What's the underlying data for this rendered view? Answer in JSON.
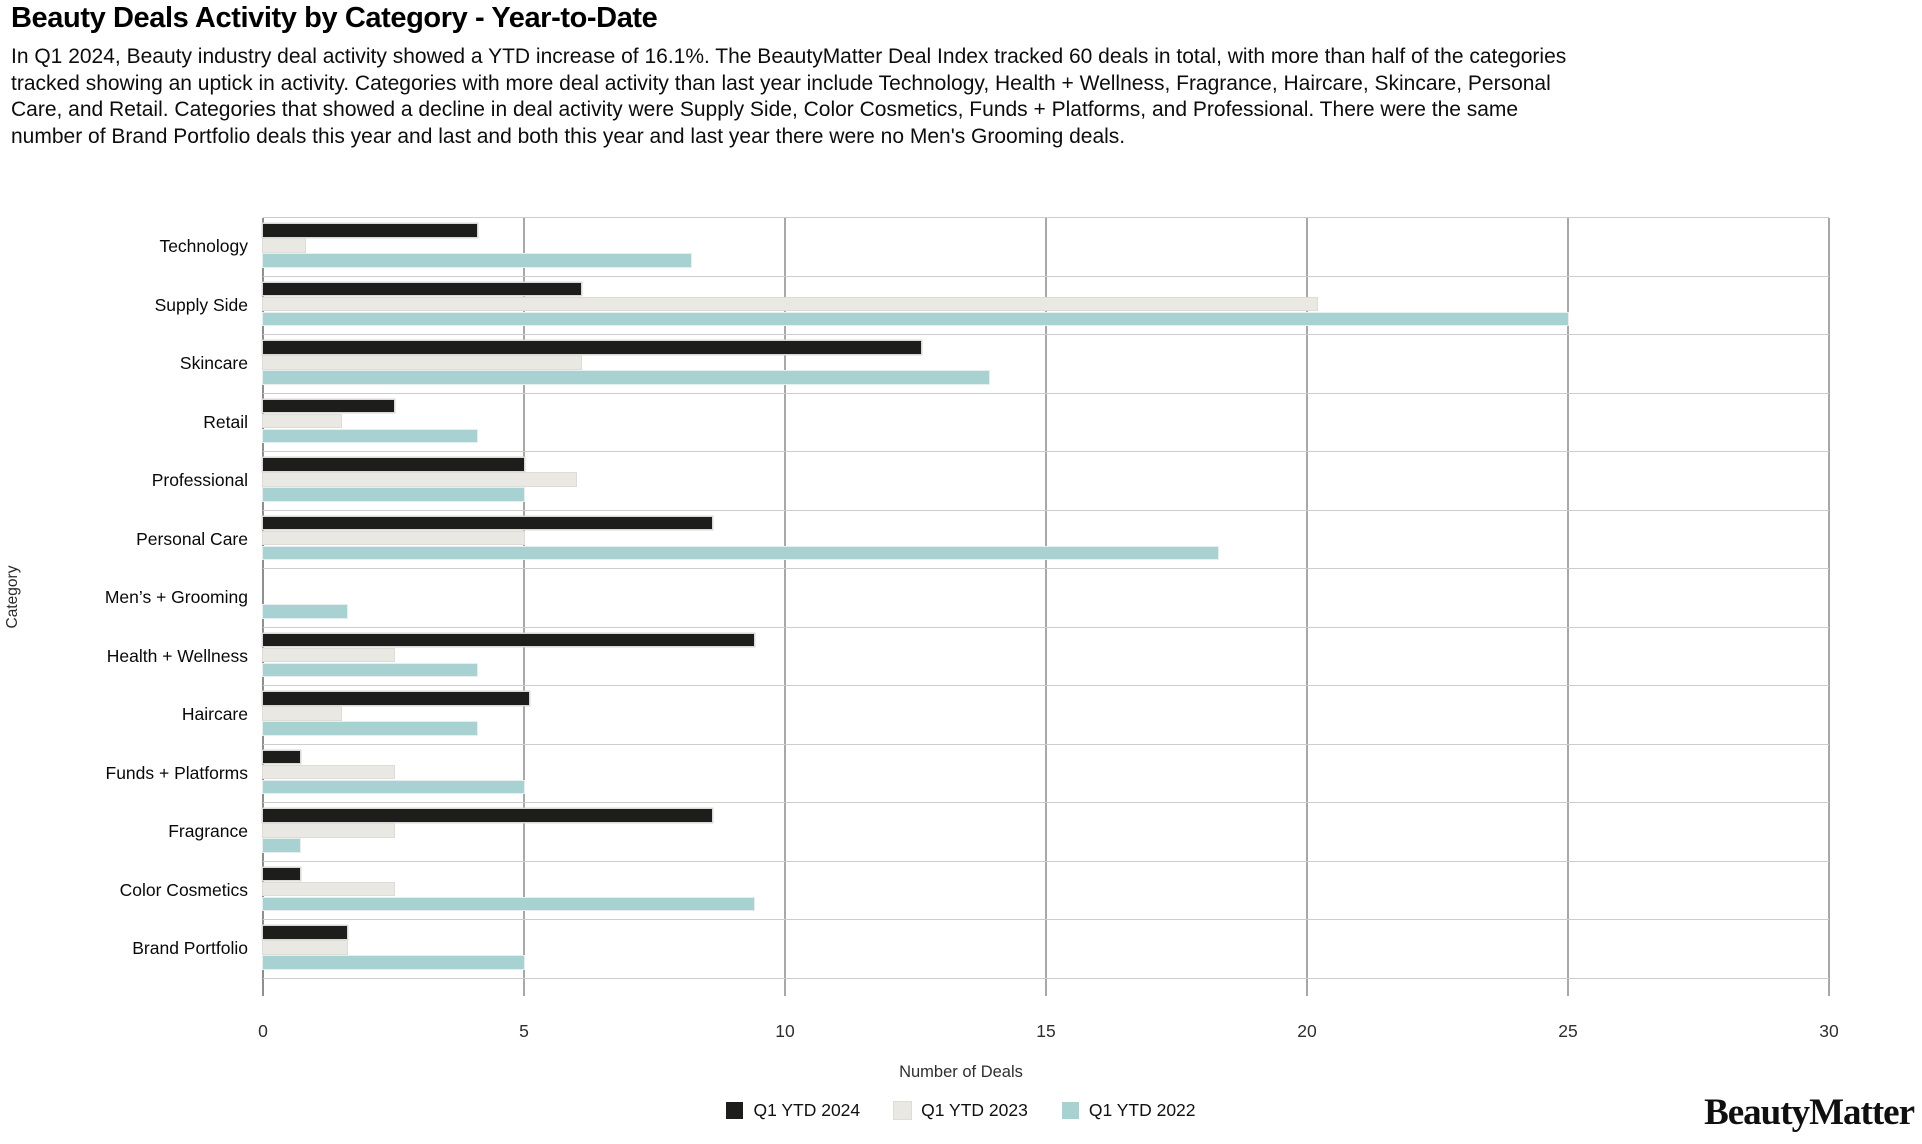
{
  "title": "Beauty Deals Activity by Category - Year-to-Date",
  "description": "In Q1 2024, Beauty industry deal activity showed a YTD increase of 16.1%. The BeautyMatter Deal Index tracked 60 deals in total, with more than half of the categories tracked showing an uptick in activity. Categories with more deal activity than last year include Technology, Health + Wellness, Fragrance, Haircare, Skincare, Personal Care, and Retail. Categories that showed a decline in deal activity were Supply Side, Color Cosmetics, Funds + Platforms, and Professional. There were the same number of Brand Portfolio deals this year and last and both this year and last year there were no Men's Grooming deals.",
  "chart_data": {
    "type": "bar",
    "orientation": "horizontal",
    "title": "Beauty Deals Activity by Category - Year-to-Date",
    "xlabel": "Number of Deals",
    "ylabel": "Category",
    "xlim": [
      0,
      30
    ],
    "xticks": [
      0,
      5,
      10,
      15,
      20,
      25,
      30
    ],
    "grid": "vertical",
    "legend_position": "bottom",
    "categories": [
      "Technology",
      "Supply Side",
      "Skincare",
      "Retail",
      "Professional",
      "Personal Care",
      "Men’s + Grooming",
      "Health + Wellness",
      "Haircare",
      "Funds + Platforms",
      "Fragrance",
      "Color Cosmetics",
      "Brand Portfolio"
    ],
    "series": [
      {
        "name": "Q1 YTD 2024",
        "color": "#1d1d1b",
        "values": [
          4.1,
          6.1,
          12.6,
          2.5,
          5,
          8.6,
          0,
          9.4,
          5.1,
          0.7,
          8.6,
          0.7,
          1.6
        ]
      },
      {
        "name": "Q1 YTD 2023",
        "color": "#eae8e2",
        "values": [
          0.8,
          20.2,
          6.1,
          1.5,
          6,
          5,
          0,
          2.5,
          1.5,
          2.5,
          2.5,
          2.5,
          1.6
        ]
      },
      {
        "name": "Q1 YTD 2022",
        "color": "#a8d2d1",
        "values": [
          8.2,
          25,
          13.9,
          4.1,
          5,
          18.3,
          1.6,
          4.1,
          4.1,
          5,
          0.7,
          9.4,
          5
        ]
      }
    ]
  },
  "branding": {
    "logo_text": "BeautyMatter"
  }
}
